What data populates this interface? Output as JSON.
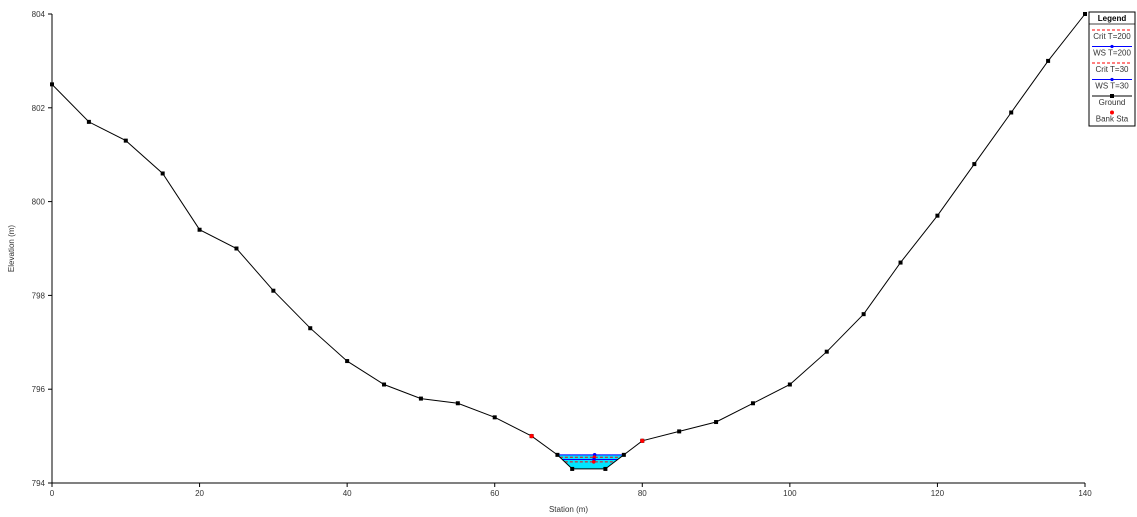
{
  "chart_data": {
    "type": "line",
    "xlabel": "Station (m)",
    "ylabel": "Elevation (m)",
    "xlim": [
      0,
      140
    ],
    "ylim": [
      794,
      804
    ],
    "x_ticks": [
      0,
      20,
      40,
      60,
      80,
      100,
      120,
      140
    ],
    "y_ticks": [
      794,
      796,
      798,
      800,
      802,
      804
    ],
    "y_tick_labels": [
      "794",
      "796",
      "798",
      "800",
      "802",
      "804"
    ],
    "grid": false,
    "legend": {
      "title": "Legend",
      "position": "top-right",
      "entries": [
        {
          "label": "Crit T=200",
          "color": "#ff0000",
          "style": "dashed"
        },
        {
          "label": "WS T=200",
          "color": "#0000ff",
          "style": "solid"
        },
        {
          "label": "Crit T=30",
          "color": "#ff0000",
          "style": "dashed"
        },
        {
          "label": "WS T=30",
          "color": "#0000ff",
          "style": "solid"
        },
        {
          "label": "Ground",
          "color": "#000000",
          "style": "solid-marker"
        },
        {
          "label": "Bank Sta",
          "color": "#ff0000",
          "style": "marker"
        }
      ]
    },
    "ground": {
      "name": "Ground",
      "color": "#000000",
      "x": [
        0,
        5,
        10,
        15,
        20,
        25,
        30,
        35,
        40,
        45,
        50,
        55,
        60,
        65,
        68.5,
        70.5,
        75,
        77.5,
        80,
        85,
        90,
        95,
        100,
        105,
        110,
        115,
        120,
        125,
        130,
        135,
        140
      ],
      "y": [
        802.5,
        801.7,
        801.3,
        800.6,
        799.4,
        799.0,
        798.1,
        797.3,
        796.6,
        796.1,
        795.8,
        795.7,
        795.4,
        795.0,
        794.6,
        794.3,
        794.3,
        794.6,
        794.9,
        795.1,
        795.3,
        795.7,
        796.1,
        796.8,
        797.6,
        798.7,
        799.7,
        800.8,
        801.9,
        803.0,
        804.0
      ]
    },
    "bank_stations": {
      "name": "Bank Sta",
      "color": "#ff0000",
      "x": [
        65,
        80
      ],
      "y": [
        795.0,
        794.9
      ]
    },
    "water_surfaces": [
      {
        "name": "WS T=200",
        "elevation": 794.6,
        "color": "#0000ff"
      },
      {
        "name": "Crit T=200",
        "elevation": 794.55,
        "color": "#ff0000"
      },
      {
        "name": "WS T=30",
        "elevation": 794.5,
        "color": "#0000ff"
      },
      {
        "name": "Crit T=30",
        "elevation": 794.45,
        "color": "#ff0000"
      }
    ],
    "water_fill_color": "#00e5ff"
  }
}
